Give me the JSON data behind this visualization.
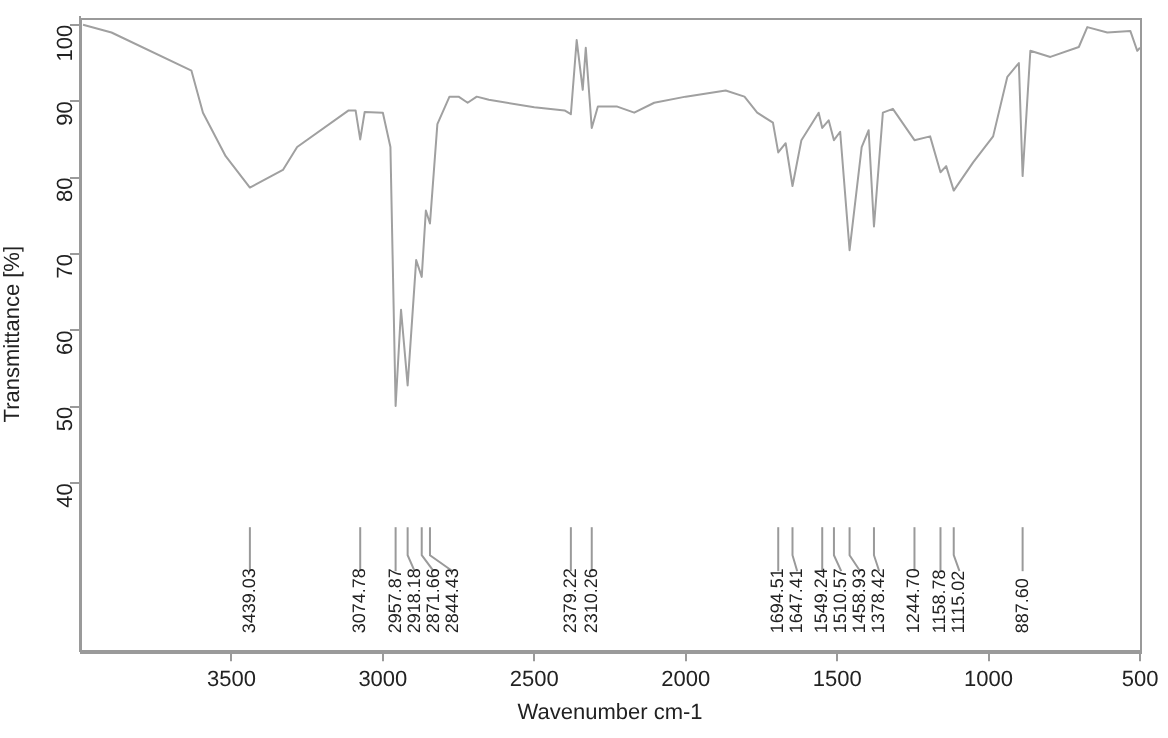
{
  "chart_data": {
    "type": "line",
    "xlabel": "Wavenumber cm-1",
    "ylabel": "Transmittance [%]",
    "xlim": [
      4000,
      500
    ],
    "xticks": [
      3500,
      3000,
      2500,
      2000,
      1500,
      1000,
      500
    ],
    "ylim": [
      18,
      101
    ],
    "yticks": [
      40,
      50,
      60,
      70,
      80,
      90,
      100
    ],
    "grid": false,
    "legend": false,
    "marker": "none",
    "line_style": "solid",
    "series": [
      {
        "color": "#a0a0a0",
        "x": [
          3990,
          3896,
          3632,
          3594,
          3519,
          3439,
          3330,
          3283,
          3113,
          3090,
          3074.78,
          3060,
          3000,
          2975,
          2957.87,
          2940,
          2918.18,
          2890,
          2871.66,
          2858,
          2844.43,
          2820,
          2780,
          2750,
          2720,
          2690,
          2650,
          2500,
          2400,
          2379.22,
          2360,
          2340,
          2330,
          2310.26,
          2290,
          2226,
          2170,
          2104,
          2000,
          1868,
          1806,
          1764,
          1712,
          1694.51,
          1670,
          1647.41,
          1618,
          1561,
          1549.24,
          1528,
          1510.57,
          1490,
          1458.93,
          1419,
          1396,
          1378.42,
          1349,
          1316,
          1244.7,
          1193,
          1158.78,
          1140,
          1115.02,
          1051,
          985,
          938,
          900,
          887.6,
          862,
          796,
          702,
          674,
          608,
          532,
          509,
          500
        ],
        "values": [
          100,
          99,
          94,
          88.5,
          82.8,
          78.7,
          81,
          84,
          88.8,
          88.8,
          85,
          88.6,
          88.5,
          84,
          50.1,
          62.7,
          52.8,
          69.2,
          67,
          75.7,
          74,
          87,
          90.6,
          90.6,
          89.8,
          90.6,
          90.2,
          89.2,
          88.8,
          88.3,
          98,
          91.5,
          97,
          86.5,
          89.3,
          89.3,
          88.5,
          89.8,
          90.6,
          91.4,
          90.6,
          88.5,
          87.2,
          83.3,
          84.5,
          78.9,
          84.9,
          88.5,
          86.5,
          87.5,
          84.9,
          86,
          70.5,
          84,
          86.2,
          73.6,
          88.5,
          89,
          84.9,
          85.4,
          80.7,
          81.5,
          78.3,
          82,
          85.4,
          93.2,
          95,
          80.2,
          96.6,
          95.8,
          97.1,
          99.7,
          99,
          99.2,
          96.6,
          97
        ]
      }
    ],
    "annotations": [
      {
        "text": "3439.03",
        "x": 3439.03
      },
      {
        "text": "3074.78",
        "x": 3074.78
      },
      {
        "text": "2957.87",
        "x": 2957.87
      },
      {
        "text": "2918.18",
        "x": 2918.18
      },
      {
        "text": "2871.66",
        "x": 2871.66
      },
      {
        "text": "2844.43",
        "x": 2844.43
      },
      {
        "text": "2379.22",
        "x": 2379.22
      },
      {
        "text": "2310.26",
        "x": 2310.26
      },
      {
        "text": "1694.51",
        "x": 1694.51
      },
      {
        "text": "1647.41",
        "x": 1647.41
      },
      {
        "text": "1549.24",
        "x": 1549.24
      },
      {
        "text": "1510.57",
        "x": 1510.57
      },
      {
        "text": "1458.93",
        "x": 1458.93
      },
      {
        "text": "1378.42",
        "x": 1378.42
      },
      {
        "text": "1244.70",
        "x": 1244.7
      },
      {
        "text": "1158.78",
        "x": 1158.78
      },
      {
        "text": "1115.02",
        "x": 1115.02
      },
      {
        "text": "887.60",
        "x": 887.6
      }
    ]
  }
}
